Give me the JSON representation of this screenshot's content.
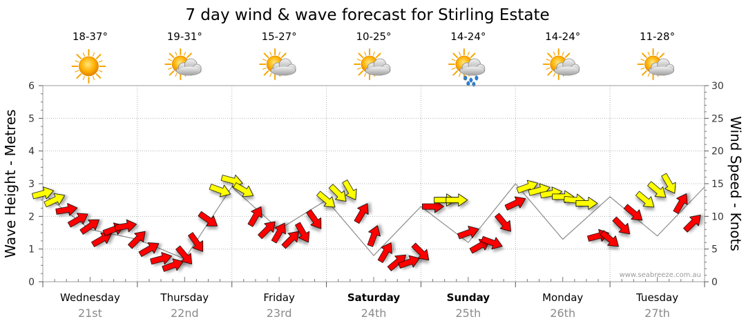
{
  "title": "7 day wind & wave forecast for Stirling Estate",
  "watermark": "www.seabreeze.com.au",
  "days": [
    {
      "day": "Wednesday",
      "date": "21st",
      "temp": "18-37°",
      "weather": "sunny-icon",
      "bold": false
    },
    {
      "day": "Thursday",
      "date": "22nd",
      "temp": "19-31°",
      "weather": "partly-cloudy-icon",
      "bold": false
    },
    {
      "day": "Friday",
      "date": "23rd",
      "temp": "15-27°",
      "weather": "partly-cloudy-icon",
      "bold": false
    },
    {
      "day": "Saturday",
      "date": "24th",
      "temp": "10-25°",
      "weather": "partly-cloudy-icon",
      "bold": true
    },
    {
      "day": "Sunday",
      "date": "25th",
      "temp": "14-24°",
      "weather": "showers-icon",
      "bold": true
    },
    {
      "day": "Monday",
      "date": "26th",
      "temp": "14-24°",
      "weather": "partly-cloudy-icon",
      "bold": false
    },
    {
      "day": "Tuesday",
      "date": "27th",
      "temp": "11-28°",
      "weather": "partly-cloudy-icon",
      "bold": false
    }
  ],
  "chart_data": {
    "type": "line",
    "title": "7 day wind & wave forecast for Stirling Estate",
    "ylabel_left": "Wave Height - Metres",
    "ylabel_right": "Wind Speed - Knots",
    "ylim_left": [
      0,
      6
    ],
    "ylim_right": [
      0,
      30
    ],
    "yticks_left": [
      "0",
      "1",
      "2",
      "3",
      "4",
      "5",
      "6"
    ],
    "yticks_right": [
      "0",
      "5",
      "10",
      "15",
      "20",
      "25",
      "30"
    ],
    "x_unit": "days since Wednesday 00:00",
    "xlim": [
      0,
      7
    ],
    "grid": true,
    "colors": {
      "strong": "#ff0000",
      "moderate": "#ffff00",
      "outline": "#000000",
      "grid": "#b0b0b0"
    },
    "series": [
      {
        "name": "Wind Speed",
        "unit": "knots",
        "points": [
          {
            "t": 0.0,
            "speed": 13.5,
            "dir": -15,
            "cat": "moderate"
          },
          {
            "t": 0.125,
            "speed": 12.5,
            "dir": -25,
            "cat": "moderate"
          },
          {
            "t": 0.25,
            "speed": 11.0,
            "dir": -10,
            "cat": "strong"
          },
          {
            "t": 0.375,
            "speed": 9.5,
            "dir": -30,
            "cat": "strong"
          },
          {
            "t": 0.5,
            "speed": 8.5,
            "dir": -35,
            "cat": "strong"
          },
          {
            "t": 0.625,
            "speed": 6.5,
            "dir": -30,
            "cat": "strong"
          },
          {
            "t": 0.75,
            "speed": 8.0,
            "dir": -20,
            "cat": "strong"
          },
          {
            "t": 0.875,
            "speed": 8.5,
            "dir": -10,
            "cat": "strong"
          },
          {
            "t": 1.0,
            "speed": 6.5,
            "dir": -45,
            "cat": "strong"
          },
          {
            "t": 1.125,
            "speed": 5.0,
            "dir": -30,
            "cat": "strong"
          },
          {
            "t": 1.25,
            "speed": 3.5,
            "dir": -15,
            "cat": "strong"
          },
          {
            "t": 1.375,
            "speed": 2.5,
            "dir": -20,
            "cat": "strong"
          },
          {
            "t": 1.5,
            "speed": 4.0,
            "dir": 50,
            "cat": "strong"
          },
          {
            "t": 1.625,
            "speed": 6.0,
            "dir": 55,
            "cat": "strong"
          },
          {
            "t": 1.75,
            "speed": 9.5,
            "dir": 35,
            "cat": "strong"
          },
          {
            "t": 1.875,
            "speed": 14.0,
            "dir": 20,
            "cat": "moderate"
          },
          {
            "t": 2.0,
            "speed": 15.5,
            "dir": 15,
            "cat": "moderate"
          },
          {
            "t": 2.125,
            "speed": 14.0,
            "dir": 30,
            "cat": "moderate"
          },
          {
            "t": 2.25,
            "speed": 10.0,
            "dir": -60,
            "cat": "strong"
          },
          {
            "t": 2.375,
            "speed": 8.0,
            "dir": -45,
            "cat": "strong"
          },
          {
            "t": 2.5,
            "speed": 7.5,
            "dir": -60,
            "cat": "strong"
          },
          {
            "t": 2.625,
            "speed": 6.5,
            "dir": -45,
            "cat": "strong"
          },
          {
            "t": 2.75,
            "speed": 7.5,
            "dir": 60,
            "cat": "strong"
          },
          {
            "t": 2.875,
            "speed": 9.5,
            "dir": 55,
            "cat": "strong"
          },
          {
            "t": 3.0,
            "speed": 12.5,
            "dir": 40,
            "cat": "moderate"
          },
          {
            "t": 3.125,
            "speed": 13.5,
            "dir": 45,
            "cat": "moderate"
          },
          {
            "t": 3.25,
            "speed": 14.0,
            "dir": 60,
            "cat": "moderate"
          },
          {
            "t": 3.375,
            "speed": 10.5,
            "dir": -60,
            "cat": "strong"
          },
          {
            "t": 3.5,
            "speed": 7.0,
            "dir": -70,
            "cat": "strong"
          },
          {
            "t": 3.625,
            "speed": 4.5,
            "dir": -60,
            "cat": "strong"
          },
          {
            "t": 3.75,
            "speed": 3.0,
            "dir": -40,
            "cat": "strong"
          },
          {
            "t": 3.875,
            "speed": 3.0,
            "dir": -20,
            "cat": "strong"
          },
          {
            "t": 4.0,
            "speed": 4.5,
            "dir": 45,
            "cat": "strong"
          },
          {
            "t": 4.125,
            "speed": 11.5,
            "dir": 0,
            "cat": "strong"
          },
          {
            "t": 4.25,
            "speed": 12.5,
            "dir": 0,
            "cat": "moderate"
          },
          {
            "t": 4.375,
            "speed": 12.5,
            "dir": 0,
            "cat": "moderate"
          },
          {
            "t": 4.5,
            "speed": 7.5,
            "dir": -20,
            "cat": "strong"
          },
          {
            "t": 4.625,
            "speed": 5.5,
            "dir": -30,
            "cat": "strong"
          },
          {
            "t": 4.75,
            "speed": 6.0,
            "dir": 20,
            "cat": "strong"
          },
          {
            "t": 4.875,
            "speed": 9.0,
            "dir": 50,
            "cat": "strong"
          },
          {
            "t": 5.0,
            "speed": 12.0,
            "dir": -25,
            "cat": "red"
          },
          {
            "t": 5.125,
            "speed": 14.5,
            "dir": -20,
            "cat": "moderate"
          },
          {
            "t": 5.25,
            "speed": 14.0,
            "dir": -15,
            "cat": "moderate"
          },
          {
            "t": 5.375,
            "speed": 13.5,
            "dir": -10,
            "cat": "moderate"
          },
          {
            "t": 5.5,
            "speed": 13.0,
            "dir": 0,
            "cat": "moderate"
          },
          {
            "t": 5.625,
            "speed": 12.5,
            "dir": 5,
            "cat": "moderate"
          },
          {
            "t": 5.75,
            "speed": 12.0,
            "dir": 0,
            "cat": "moderate"
          },
          {
            "t": 5.875,
            "speed": 7.0,
            "dir": -15,
            "cat": "strong"
          },
          {
            "t": 6.0,
            "speed": 6.5,
            "dir": 40,
            "cat": "strong"
          },
          {
            "t": 6.125,
            "speed": 8.5,
            "dir": 45,
            "cat": "strong"
          },
          {
            "t": 6.25,
            "speed": 10.5,
            "dir": 40,
            "cat": "strong"
          },
          {
            "t": 6.375,
            "speed": 12.5,
            "dir": 40,
            "cat": "moderate"
          },
          {
            "t": 6.5,
            "speed": 14.0,
            "dir": 40,
            "cat": "moderate"
          },
          {
            "t": 6.625,
            "speed": 15.0,
            "dir": 60,
            "cat": "moderate"
          },
          {
            "t": 6.75,
            "speed": 12.0,
            "dir": -60,
            "cat": "strong"
          },
          {
            "t": 6.875,
            "speed": 9.0,
            "dir": -45,
            "cat": "strong"
          }
        ]
      },
      {
        "name": "Wave Height",
        "unit": "metres",
        "points": [
          {
            "t": 0.0,
            "height": 2.7
          },
          {
            "t": 0.5,
            "height": 1.6
          },
          {
            "t": 1.0,
            "height": 1.3
          },
          {
            "t": 1.5,
            "height": 0.7
          },
          {
            "t": 2.0,
            "height": 2.9
          },
          {
            "t": 2.5,
            "height": 1.6
          },
          {
            "t": 3.0,
            "height": 2.5
          },
          {
            "t": 3.5,
            "height": 0.8
          },
          {
            "t": 4.0,
            "height": 2.3
          },
          {
            "t": 4.5,
            "height": 1.2
          },
          {
            "t": 5.0,
            "height": 3.0
          },
          {
            "t": 5.5,
            "height": 1.3
          },
          {
            "t": 6.0,
            "height": 2.6
          },
          {
            "t": 6.5,
            "height": 1.4
          },
          {
            "t": 7.0,
            "height": 2.9
          }
        ]
      }
    ]
  }
}
